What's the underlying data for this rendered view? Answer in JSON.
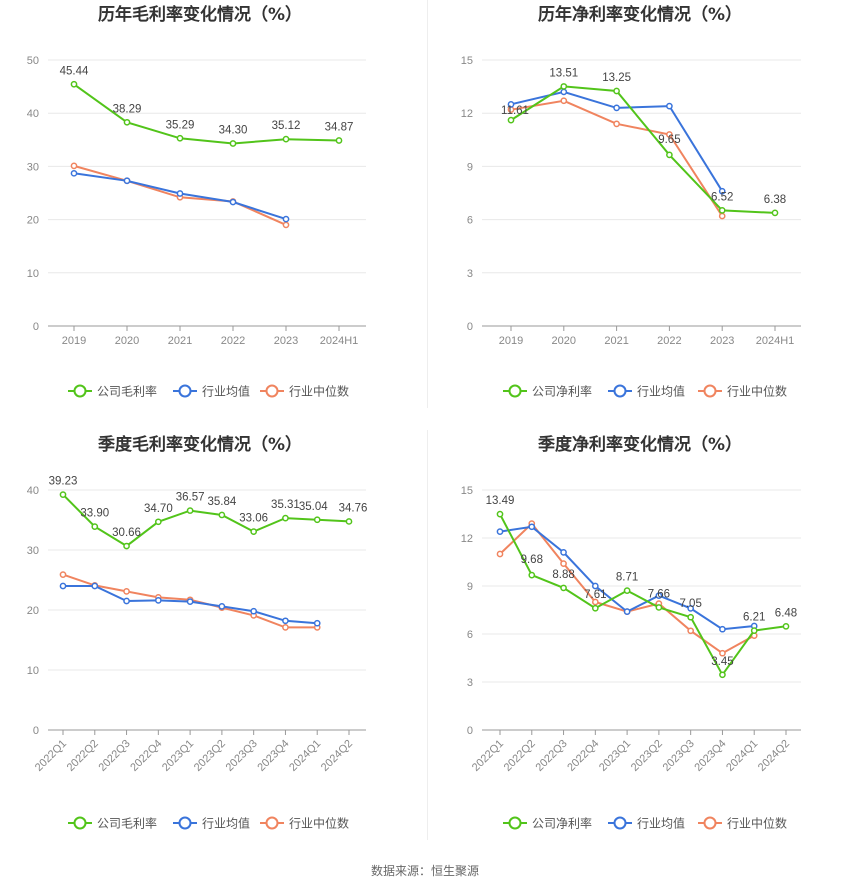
{
  "source": "数据来源：恒生聚源",
  "colors": {
    "company": "#52c41a",
    "avg": "#3a74db",
    "median": "#f0845f"
  },
  "chart_data": [
    {
      "type": "line",
      "title": "历年毛利率变化情况（%）",
      "categories": [
        "2019",
        "2020",
        "2021",
        "2022",
        "2023",
        "2024H1"
      ],
      "ylim": [
        0,
        50
      ],
      "yticks": [
        0,
        10,
        20,
        30,
        40,
        50
      ],
      "grid": true,
      "legend": "bottom",
      "series": [
        {
          "name": "公司毛利率",
          "color": "#52c41a",
          "values": [
            45.44,
            38.29,
            35.29,
            34.3,
            35.12,
            34.87
          ],
          "labels": [
            "45.44",
            "38.29",
            "35.29",
            "34.30",
            "35.12",
            "34.87"
          ]
        },
        {
          "name": "行业均值",
          "color": "#3a74db",
          "values": [
            28.7,
            27.3,
            24.9,
            23.3,
            20.1,
            null
          ]
        },
        {
          "name": "行业中位数",
          "color": "#f0845f",
          "values": [
            30.1,
            27.3,
            24.2,
            23.4,
            19.0,
            null
          ]
        }
      ]
    },
    {
      "type": "line",
      "title": "历年净利率变化情况（%）",
      "categories": [
        "2019",
        "2020",
        "2021",
        "2022",
        "2023",
        "2024H1"
      ],
      "ylim": [
        0,
        15
      ],
      "yticks": [
        0,
        3,
        6,
        9,
        12,
        15
      ],
      "grid": true,
      "legend": "bottom",
      "series": [
        {
          "name": "公司净利率",
          "color": "#52c41a",
          "values": [
            11.61,
            13.51,
            13.25,
            9.65,
            6.52,
            6.38
          ],
          "labels": [
            "11.61",
            "13.51",
            "13.25",
            "9.65",
            "6.52",
            "6.38"
          ]
        },
        {
          "name": "行业均值",
          "color": "#3a74db",
          "values": [
            12.5,
            13.2,
            12.3,
            12.4,
            7.6,
            null
          ]
        },
        {
          "name": "行业中位数",
          "color": "#f0845f",
          "values": [
            12.2,
            12.7,
            11.4,
            10.8,
            6.2,
            null
          ]
        }
      ]
    },
    {
      "type": "line",
      "title": "季度毛利率变化情况（%）",
      "categories": [
        "2022Q1",
        "2022Q2",
        "2022Q3",
        "2022Q4",
        "2023Q1",
        "2023Q2",
        "2023Q3",
        "2023Q4",
        "2024Q1",
        "2024Q2"
      ],
      "ylim": [
        0,
        40
      ],
      "yticks": [
        0,
        10,
        20,
        30,
        40
      ],
      "grid": true,
      "legend": "bottom",
      "series": [
        {
          "name": "公司毛利率",
          "color": "#52c41a",
          "values": [
            39.23,
            33.9,
            30.66,
            34.7,
            36.57,
            35.84,
            33.06,
            35.31,
            35.04,
            34.76
          ],
          "labels": [
            "39.23",
            "33.90",
            "30.66",
            "34.70",
            "36.57",
            "35.84",
            "33.06",
            "35.31",
            "35.04",
            "34.76"
          ]
        },
        {
          "name": "行业均值",
          "color": "#3a74db",
          "values": [
            24.0,
            24.0,
            21.5,
            21.6,
            21.4,
            20.6,
            19.8,
            18.2,
            17.8,
            null
          ]
        },
        {
          "name": "行业中位数",
          "color": "#f0845f",
          "values": [
            25.9,
            24.1,
            23.1,
            22.1,
            21.7,
            20.4,
            19.1,
            17.1,
            17.1,
            null
          ]
        }
      ]
    },
    {
      "type": "line",
      "title": "季度净利率变化情况（%）",
      "categories": [
        "2022Q1",
        "2022Q2",
        "2022Q3",
        "2022Q4",
        "2023Q1",
        "2023Q2",
        "2023Q3",
        "2023Q4",
        "2024Q1",
        "2024Q2"
      ],
      "ylim": [
        0,
        15
      ],
      "yticks": [
        0,
        3,
        6,
        9,
        12,
        15
      ],
      "grid": true,
      "legend": "bottom",
      "series": [
        {
          "name": "公司净利率",
          "color": "#52c41a",
          "values": [
            13.49,
            9.68,
            8.88,
            7.61,
            8.71,
            7.66,
            7.05,
            3.45,
            6.21,
            6.48
          ],
          "labels": [
            "13.49",
            "9.68",
            "8.88",
            "7.61",
            "8.71",
            "7.66",
            "7.05",
            "3.45",
            "6.21",
            "6.48"
          ]
        },
        {
          "name": "行业均值",
          "color": "#3a74db",
          "values": [
            12.4,
            12.7,
            11.1,
            9.0,
            7.4,
            8.4,
            7.6,
            6.3,
            6.5,
            null
          ]
        },
        {
          "name": "行业中位数",
          "color": "#f0845f",
          "values": [
            11.0,
            12.9,
            10.4,
            8.0,
            7.4,
            7.9,
            6.2,
            4.8,
            5.9,
            null
          ]
        }
      ]
    }
  ]
}
